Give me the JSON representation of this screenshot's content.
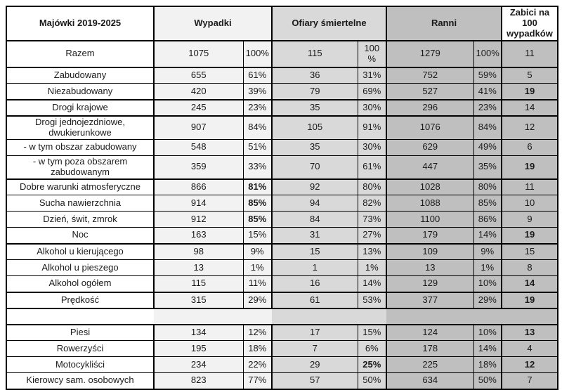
{
  "table": {
    "title": "Majówki 2019-2025",
    "columns": {
      "wypadki": "Wypadki",
      "ofiary": "Ofiary śmiertelne",
      "ranni": "Ranni",
      "zabici": "Zabici na 100 wypadków"
    },
    "colors": {
      "wypadki_bg": "#f2f2f2",
      "ofiary_bg": "#d9d9d9",
      "ranni_bg": "#bfbfbf",
      "border": "#000000"
    },
    "rows": [
      {
        "label": "Razem",
        "wyp": "1075",
        "wyp_pct": "100%",
        "of": "115",
        "of_pct": "100 %",
        "ran": "1279",
        "ran_pct": "100%",
        "zab": "11",
        "bold": [],
        "sep": "thick",
        "razem": true
      },
      {
        "label": "Zabudowany",
        "wyp": "655",
        "wyp_pct": "61%",
        "of": "36",
        "of_pct": "31%",
        "ran": "752",
        "ran_pct": "59%",
        "zab": "5",
        "bold": [],
        "sep": "thick"
      },
      {
        "label": "Niezabudowany",
        "wyp": "420",
        "wyp_pct": "39%",
        "of": "79",
        "of_pct": "69%",
        "ran": "527",
        "ran_pct": "41%",
        "zab": "19",
        "bold": [
          "zab"
        ],
        "sep": "thin"
      },
      {
        "label": "Drogi krajowe",
        "wyp": "245",
        "wyp_pct": "23%",
        "of": "35",
        "of_pct": "30%",
        "ran": "296",
        "ran_pct": "23%",
        "zab": "14",
        "bold": [],
        "sep": "thick"
      },
      {
        "label": "Drogi jednojezdniowe, dwukierunkowe",
        "wyp": "907",
        "wyp_pct": "84%",
        "of": "105",
        "of_pct": "91%",
        "ran": "1076",
        "ran_pct": "84%",
        "zab": "12",
        "bold": [],
        "sep": "thick"
      },
      {
        "label": "- w tym obszar zabudowany",
        "wyp": "548",
        "wyp_pct": "51%",
        "of": "35",
        "of_pct": "30%",
        "ran": "629",
        "ran_pct": "49%",
        "zab": "6",
        "bold": [],
        "sep": "thin"
      },
      {
        "label": "- w tym poza obszarem zabudowanym",
        "wyp": "359",
        "wyp_pct": "33%",
        "of": "70",
        "of_pct": "61%",
        "ran": "447",
        "ran_pct": "35%",
        "zab": "19",
        "bold": [
          "zab"
        ],
        "sep": "thin"
      },
      {
        "label": "Dobre warunki atmosferyczne",
        "wyp": "866",
        "wyp_pct": "81%",
        "of": "92",
        "of_pct": "80%",
        "ran": "1028",
        "ran_pct": "80%",
        "zab": "11",
        "bold": [
          "wyp_pct"
        ],
        "sep": "thick"
      },
      {
        "label": "Sucha nawierzchnia",
        "wyp": "914",
        "wyp_pct": "85%",
        "of": "94",
        "of_pct": "82%",
        "ran": "1088",
        "ran_pct": "85%",
        "zab": "10",
        "bold": [
          "wyp_pct"
        ],
        "sep": "thin"
      },
      {
        "label": "Dzień, świt, zmrok",
        "wyp": "912",
        "wyp_pct": "85%",
        "of": "84",
        "of_pct": "73%",
        "ran": "1100",
        "ran_pct": "86%",
        "zab": "9",
        "bold": [
          "wyp_pct"
        ],
        "sep": "thin"
      },
      {
        "label": "Noc",
        "wyp": "163",
        "wyp_pct": "15%",
        "of": "31",
        "of_pct": "27%",
        "ran": "179",
        "ran_pct": "14%",
        "zab": "19",
        "bold": [
          "zab"
        ],
        "sep": "thin"
      },
      {
        "label": "Alkohol u kierującego",
        "wyp": "98",
        "wyp_pct": "9%",
        "of": "15",
        "of_pct": "13%",
        "ran": "109",
        "ran_pct": "9%",
        "zab": "15",
        "bold": [],
        "sep": "thick"
      },
      {
        "label": "Alkohol u pieszego",
        "wyp": "13",
        "wyp_pct": "1%",
        "of": "1",
        "of_pct": "1%",
        "ran": "13",
        "ran_pct": "1%",
        "zab": "8",
        "bold": [],
        "sep": "thin"
      },
      {
        "label": "Alkohol ogółem",
        "wyp": "115",
        "wyp_pct": "11%",
        "of": "16",
        "of_pct": "14%",
        "ran": "129",
        "ran_pct": "10%",
        "zab": "14",
        "bold": [
          "zab"
        ],
        "sep": "thin"
      },
      {
        "label": "Prędkość",
        "wyp": "315",
        "wyp_pct": "29%",
        "of": "61",
        "of_pct": "53%",
        "ran": "377",
        "ran_pct": "29%",
        "zab": "19",
        "bold": [
          "zab"
        ],
        "sep": "thick"
      },
      {
        "label": "",
        "wyp": "",
        "wyp_pct": "",
        "of": "",
        "of_pct": "",
        "ran": "",
        "ran_pct": "",
        "zab": "",
        "bold": [],
        "sep": "thick",
        "empty": true
      },
      {
        "label": "Piesi",
        "wyp": "134",
        "wyp_pct": "12%",
        "of": "17",
        "of_pct": "15%",
        "ran": "124",
        "ran_pct": "10%",
        "zab": "13",
        "bold": [
          "zab"
        ],
        "sep": "thick"
      },
      {
        "label": "Rowerzyści",
        "wyp": "195",
        "wyp_pct": "18%",
        "of": "7",
        "of_pct": "6%",
        "ran": "178",
        "ran_pct": "14%",
        "zab": "4",
        "bold": [],
        "sep": "thin"
      },
      {
        "label": "Motocykliści",
        "wyp": "234",
        "wyp_pct": "22%",
        "of": "29",
        "of_pct": "25%",
        "ran": "225",
        "ran_pct": "18%",
        "zab": "12",
        "bold": [
          "of_pct",
          "zab"
        ],
        "sep": "thin"
      },
      {
        "label": "Kierowcy sam. osobowych",
        "wyp": "823",
        "wyp_pct": "77%",
        "of": "57",
        "of_pct": "50%",
        "ran": "634",
        "ran_pct": "50%",
        "zab": "7",
        "bold": [],
        "sep": "thin"
      }
    ]
  }
}
